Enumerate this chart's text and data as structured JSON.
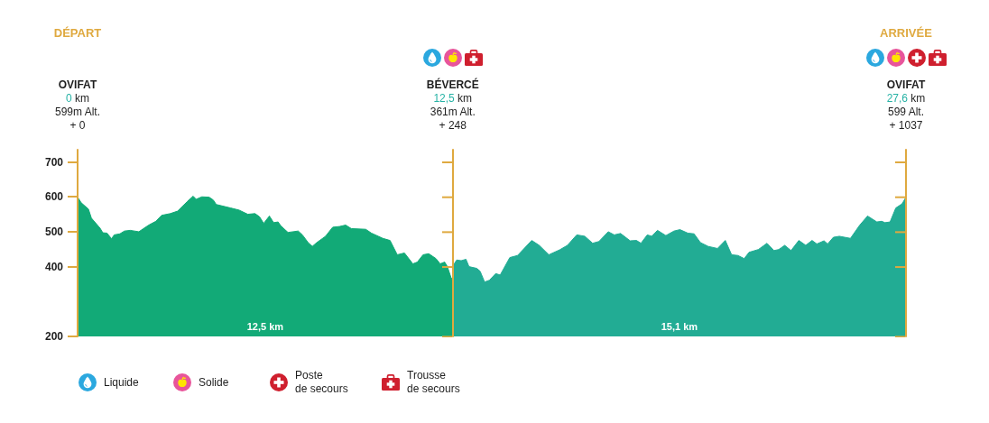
{
  "chart_data": {
    "type": "area",
    "xlim": [
      0,
      27.6
    ],
    "xticks": [
      {
        "value": 0,
        "label": "0 km"
      },
      {
        "value": 12.5,
        "label": "12,5 km"
      },
      {
        "value": 27.6,
        "label": "27,6 km"
      }
    ],
    "ylim": [
      200,
      735
    ],
    "yticks": [
      200,
      400,
      500,
      600,
      700
    ],
    "grid": false,
    "series": [
      {
        "color": "#12aa77",
        "x": [
          0,
          0.12,
          0.36,
          0.46,
          0.75,
          0.84,
          0.98,
          1.13,
          1.22,
          1.41,
          1.56,
          1.75,
          2.04,
          2.37,
          2.61,
          2.8,
          3.09,
          3.33,
          3.66,
          3.85,
          3.95,
          4.14,
          4.38,
          4.52,
          4.62,
          4.81,
          5.1,
          5.38,
          5.67,
          5.91,
          6.06,
          6.2,
          6.39,
          6.53,
          6.68,
          6.77,
          7.01,
          7.35,
          7.49,
          7.68,
          7.82,
          7.97,
          8.26,
          8.5,
          8.73,
          8.93,
          9.12,
          9.6,
          9.79,
          10.17,
          10.41,
          10.65,
          10.89,
          11.17,
          11.32,
          11.51,
          11.7,
          11.94,
          12.08,
          12.23,
          12.32,
          12.44,
          12.5
        ],
        "values": [
          599,
          583,
          565,
          539,
          510,
          497,
          496,
          480,
          491,
          494,
          502,
          504,
          500,
          519,
          530,
          547,
          552,
          559,
          587,
          602,
          593,
          600,
          599,
          591,
          578,
          574,
          568,
          562,
          550,
          552,
          543,
          524,
          545,
          526,
          528,
          517,
          498,
          502,
          491,
          469,
          458,
          469,
          487,
          513,
          515,
          519,
          509,
          507,
          496,
          481,
          475,
          434,
          439,
          408,
          413,
          434,
          437,
          423,
          408,
          413,
          400,
          369,
          361
        ]
      },
      {
        "color": "#22ac94",
        "x": [
          12.5,
          12.52,
          12.63,
          12.78,
          12.94,
          13.04,
          13.3,
          13.41,
          13.56,
          13.72,
          13.93,
          14.08,
          14.4,
          14.66,
          15.13,
          15.38,
          15.7,
          16.06,
          16.32,
          16.63,
          16.9,
          17.16,
          17.37,
          17.68,
          17.88,
          18.09,
          18.41,
          18.62,
          18.77,
          18.98,
          19.13,
          19.32,
          19.6,
          19.87,
          20.07,
          20.33,
          20.54,
          20.75,
          21.01,
          21.32,
          21.58,
          21.79,
          22,
          22.21,
          22.37,
          22.68,
          22.97,
          23.2,
          23.36,
          23.56,
          23.77,
          24.03,
          24.26,
          24.47,
          24.63,
          24.87,
          24.99,
          25.18,
          25.38,
          25.75,
          26.06,
          26.32,
          26.63,
          26.79,
          26.9,
          27.07,
          27.26,
          27.47,
          27.6
        ],
        "values": [
          361,
          404,
          419,
          417,
          421,
          400,
          395,
          387,
          356,
          361,
          380,
          376,
          426,
          432,
          475,
          461,
          434,
          448,
          461,
          491,
          487,
          467,
          472,
          500,
          491,
          495,
          474,
          475,
          467,
          491,
          487,
          504,
          489,
          502,
          506,
          496,
          494,
          469,
          458,
          452,
          475,
          434,
          432,
          423,
          441,
          449,
          467,
          446,
          449,
          461,
          446,
          475,
          461,
          475,
          465,
          474,
          465,
          484,
          487,
          481,
          519,
          545,
          528,
          530,
          526,
          528,
          568,
          580,
          599
        ]
      }
    ],
    "ref_lines": [
      {
        "axis": "x",
        "value": 12.5,
        "color": "#dfa93f"
      },
      {
        "axis": "x",
        "value": 27.6,
        "color": "#dfa93f"
      }
    ],
    "annotations": [
      "DÉPART",
      "ARRIVÉE",
      "OVIFAT",
      "599m Alt.\n+ 0",
      "BÉVERCÉ",
      "361m Alt.\n+ 248",
      "OVIFAT",
      "599 Alt.\n+ 1037",
      "12,5 km",
      "15,1 km",
      "Liquide",
      "Solide",
      "Poste\nde secours",
      "Trousse\nde secours"
    ]
  }
}
